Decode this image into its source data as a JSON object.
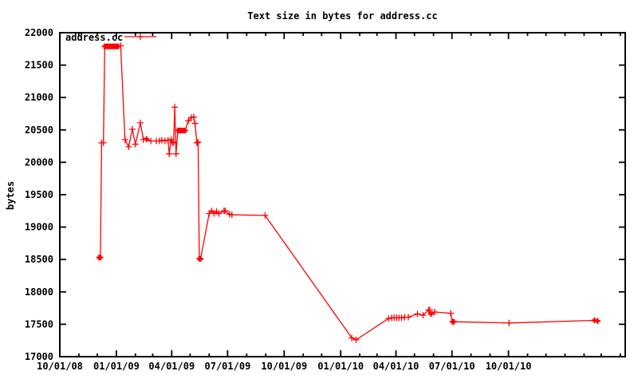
{
  "chart_data": {
    "type": "line",
    "title": "Text size in bytes for address.cc",
    "xlabel": "",
    "ylabel": "bytes",
    "grid": false,
    "background": "#ffffff",
    "axis_color": "#000000",
    "legend_position": "top-left-inside",
    "ylim": [
      17000,
      22000
    ],
    "y_ticks": [
      17000,
      17500,
      18000,
      18500,
      19000,
      19500,
      20000,
      20500,
      21000,
      21500,
      22000
    ],
    "x_domain": [
      "2008-10-01",
      "2011-04-09"
    ],
    "x_ticks": [
      {
        "date": "2008-10-01",
        "label": "10/01/08"
      },
      {
        "date": "2009-01-01",
        "label": "01/01/09"
      },
      {
        "date": "2009-04-01",
        "label": "04/01/09"
      },
      {
        "date": "2009-07-01",
        "label": "07/01/09"
      },
      {
        "date": "2009-10-01",
        "label": "10/01/09"
      },
      {
        "date": "2010-01-01",
        "label": "01/01/10"
      },
      {
        "date": "2010-04-01",
        "label": "04/01/10"
      },
      {
        "date": "2010-07-01",
        "label": "07/01/10"
      },
      {
        "date": "2010-10-01",
        "label": "10/01/10"
      }
    ],
    "x_minor_ticks": "monthly",
    "series": [
      {
        "name": "address.cc",
        "color": "#ff0000",
        "marker": "plus",
        "points": [
          [
            "2008-12-04",
            18530,
            2
          ],
          [
            "2008-12-06",
            18530,
            2
          ],
          [
            "2008-12-08",
            20300,
            1
          ],
          [
            "2008-12-11",
            20300,
            1
          ],
          [
            "2008-12-13",
            21790,
            2
          ],
          [
            "2008-12-15",
            21790,
            2
          ],
          [
            "2008-12-17",
            21790,
            2
          ],
          [
            "2008-12-19",
            21790,
            2
          ],
          [
            "2008-12-21",
            21790,
            2
          ],
          [
            "2008-12-24",
            21790,
            2
          ],
          [
            "2008-12-27",
            21790,
            2
          ],
          [
            "2008-12-30",
            21790,
            2
          ],
          [
            "2009-01-02",
            21790,
            2
          ],
          [
            "2009-01-04",
            21790,
            2
          ],
          [
            "2009-01-08",
            21800,
            1
          ],
          [
            "2009-01-15",
            20350,
            1
          ],
          [
            "2009-01-21",
            20240,
            1
          ],
          [
            "2009-01-27",
            20510,
            1
          ],
          [
            "2009-02-01",
            20280,
            1
          ],
          [
            "2009-02-09",
            20610,
            1
          ],
          [
            "2009-02-14",
            20350,
            1
          ],
          [
            "2009-02-19",
            20360,
            2
          ],
          [
            "2009-02-26",
            20330,
            1
          ],
          [
            "2009-03-07",
            20330,
            1
          ],
          [
            "2009-03-12",
            20330,
            1
          ],
          [
            "2009-03-16",
            20340,
            1
          ],
          [
            "2009-03-21",
            20330,
            1
          ],
          [
            "2009-03-26",
            20340,
            1
          ],
          [
            "2009-03-28",
            20130,
            1
          ],
          [
            "2009-03-31",
            20350,
            1
          ],
          [
            "2009-04-02",
            20310,
            1
          ],
          [
            "2009-04-04",
            20300,
            1
          ],
          [
            "2009-04-06",
            20850,
            1
          ],
          [
            "2009-04-08",
            20130,
            1
          ],
          [
            "2009-04-11",
            20490,
            2
          ],
          [
            "2009-04-13",
            20490,
            2
          ],
          [
            "2009-04-15",
            20490,
            2
          ],
          [
            "2009-04-17",
            20490,
            2
          ],
          [
            "2009-04-19",
            20490,
            2
          ],
          [
            "2009-04-21",
            20490,
            2
          ],
          [
            "2009-04-23",
            20490,
            2
          ],
          [
            "2009-04-28",
            20640,
            1
          ],
          [
            "2009-05-03",
            20690,
            1
          ],
          [
            "2009-05-07",
            20700,
            1
          ],
          [
            "2009-05-09",
            20600,
            1
          ],
          [
            "2009-05-12",
            20300,
            1
          ],
          [
            "2009-05-14",
            20310,
            1
          ],
          [
            "2009-05-16",
            18510,
            2
          ],
          [
            "2009-05-18",
            18510,
            2
          ],
          [
            "2009-06-01",
            19210,
            1
          ],
          [
            "2009-06-05",
            19250,
            1
          ],
          [
            "2009-06-09",
            19210,
            1
          ],
          [
            "2009-06-13",
            19240,
            1
          ],
          [
            "2009-06-17",
            19210,
            1
          ],
          [
            "2009-06-25",
            19250,
            1
          ],
          [
            "2009-06-27",
            19250,
            1
          ],
          [
            "2009-07-04",
            19200,
            1
          ],
          [
            "2009-07-08",
            19190,
            1
          ],
          [
            "2009-08-31",
            19180,
            1
          ],
          [
            "2010-01-19",
            17290,
            1
          ],
          [
            "2010-01-26",
            17260,
            1
          ],
          [
            "2010-03-20",
            17590,
            1
          ],
          [
            "2010-03-25",
            17600,
            1
          ],
          [
            "2010-03-29",
            17600,
            1
          ],
          [
            "2010-04-02",
            17600,
            1
          ],
          [
            "2010-04-06",
            17600,
            1
          ],
          [
            "2010-04-10",
            17600,
            1
          ],
          [
            "2010-04-15",
            17610,
            1
          ],
          [
            "2010-04-21",
            17610,
            1
          ],
          [
            "2010-05-06",
            17660,
            1
          ],
          [
            "2010-05-15",
            17640,
            1
          ],
          [
            "2010-05-24",
            17720,
            1
          ],
          [
            "2010-05-26",
            17720,
            1
          ],
          [
            "2010-05-28",
            17660,
            2
          ],
          [
            "2010-06-03",
            17690,
            1
          ],
          [
            "2010-06-29",
            17670,
            1
          ],
          [
            "2010-07-02",
            17540,
            2
          ],
          [
            "2010-07-04",
            17540,
            2
          ],
          [
            "2010-10-02",
            17520,
            1
          ],
          [
            "2011-02-18",
            17560,
            2
          ],
          [
            "2011-02-23",
            17550,
            2
          ]
        ]
      }
    ],
    "legend": [
      {
        "label": "address.cc",
        "color": "#ff0000",
        "marker": "plus"
      }
    ]
  }
}
